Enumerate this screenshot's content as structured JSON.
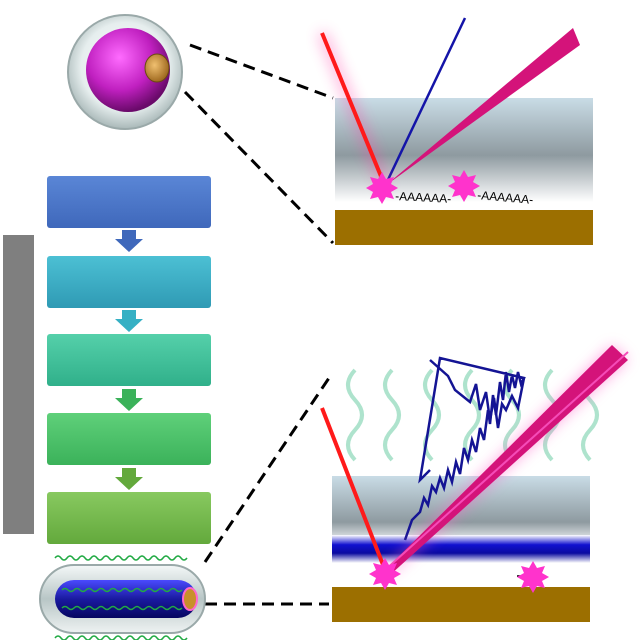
{
  "strands": {
    "left": "-AAAAAA-",
    "right": "-AAAAAA-"
  },
  "flow_boxes": [
    {
      "color": "#4472c4"
    },
    {
      "color": "#3aa6c0"
    },
    {
      "color": "#3dbf9a"
    },
    {
      "color": "#49c16a"
    },
    {
      "color": "#72b84c"
    }
  ],
  "colors": {
    "gold_substrate": "#9c6f00",
    "laser_red": "#ff1a1a",
    "beam_magenta": "#d4137a",
    "scatter_blue": "#0a0aa0",
    "star_pink": "#ff33cc",
    "cell_purple": "#c020c0",
    "wave_green": "#9fdcc0",
    "side_bar_gray": "#7f7f7f"
  }
}
